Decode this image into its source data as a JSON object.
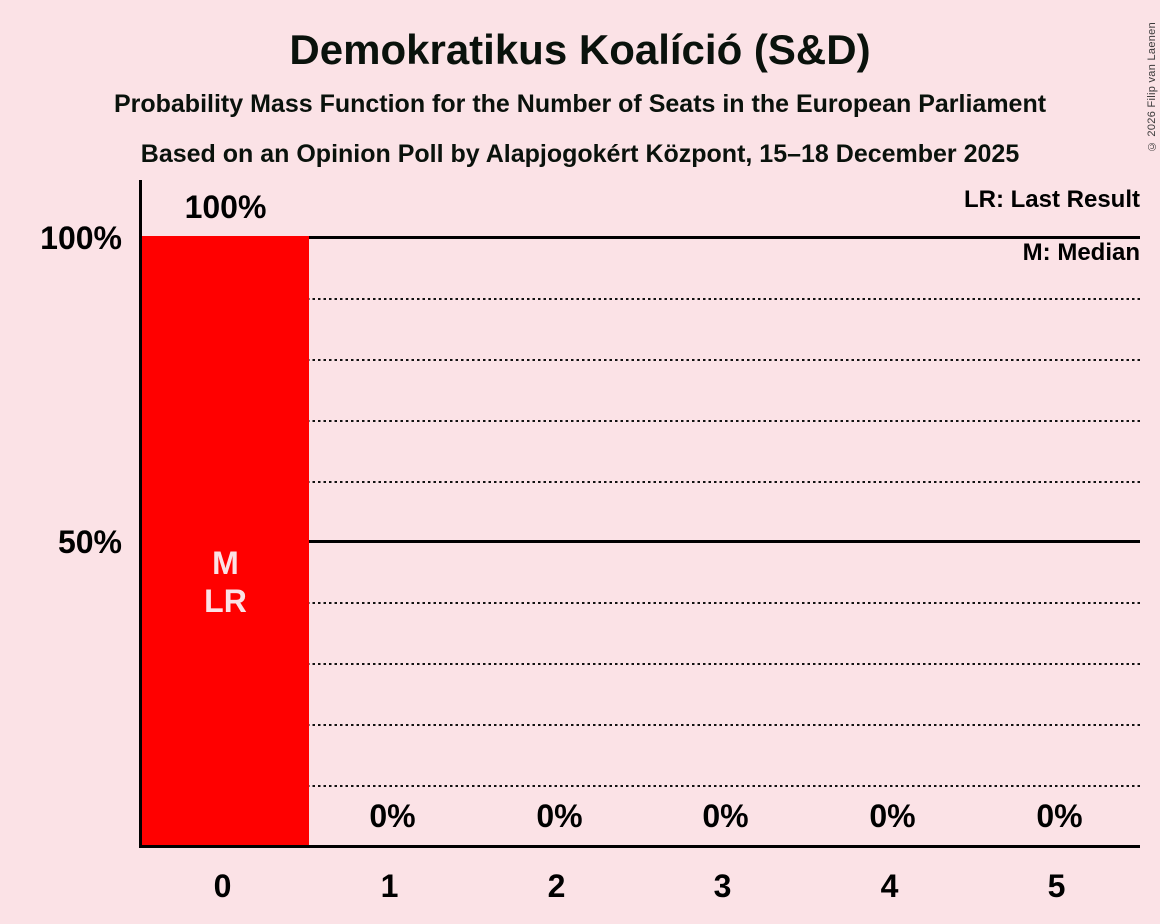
{
  "copyright": "© 2026 Filip van Laenen",
  "chart_data": {
    "type": "bar",
    "title": "Demokratikus Koalíció (S&D)",
    "subtitle": "Probability Mass Function for the Number of Seats in the European Parliament",
    "poll_line": "Based on an Opinion Poll by Alapjogokért Központ, 15–18 December 2025",
    "categories": [
      "0",
      "1",
      "2",
      "3",
      "4",
      "5"
    ],
    "values": [
      100,
      0,
      0,
      0,
      0,
      0
    ],
    "value_labels": [
      "100%",
      "0%",
      "0%",
      "0%",
      "0%",
      "0%"
    ],
    "xlabel": "",
    "ylabel": "",
    "ylim": [
      0,
      100
    ],
    "ytick_labels": [
      "100%",
      "50%"
    ],
    "grid": "solid lines at 100% and 50%, dotted lines every 10%",
    "legend": {
      "lr": "LR: Last Result",
      "m": "M: Median"
    },
    "annotations": {
      "median": "M",
      "last_result": "LR",
      "annotated_seat": "0"
    },
    "colors": {
      "bar": "#FF0000",
      "background": "#FBE2E6",
      "text": "#000000",
      "bar_annotation_text": "#FBE2E6"
    }
  }
}
